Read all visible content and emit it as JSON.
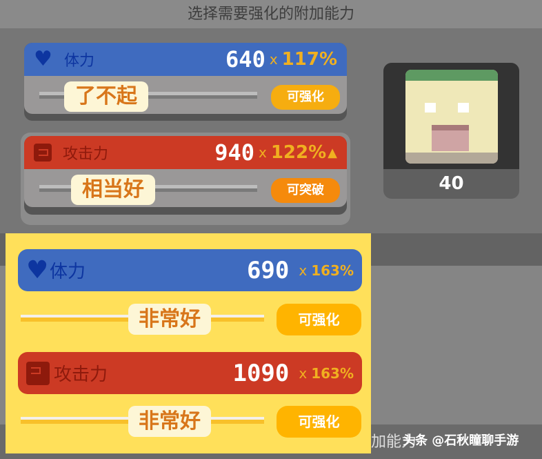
{
  "title": "选择需要强化的附加能力",
  "current": [
    {
      "stat": "体力",
      "value": "640",
      "mult": "117%",
      "grade": "了不起",
      "button": "可强化",
      "color": "#3f6bbf",
      "icon": "heart-icon"
    },
    {
      "stat": "攻击力",
      "value": "940",
      "mult": "122%",
      "grade": "相当好",
      "button": "可突破",
      "color": "#cc3a24",
      "icon": "fist-icon",
      "arrow": "up-arrow-icon"
    }
  ],
  "portrait": {
    "level": "40"
  },
  "preview": [
    {
      "stat": "体力",
      "value": "690",
      "mult": "163%",
      "grade": "非常好",
      "button": "可强化"
    },
    {
      "stat": "攻击力",
      "value": "1090",
      "mult": "163%",
      "grade": "非常好",
      "button": "可强化"
    }
  ],
  "times": "x",
  "bottom_text": "加能力",
  "watermark": "头条 @石秋瞳聊手游"
}
